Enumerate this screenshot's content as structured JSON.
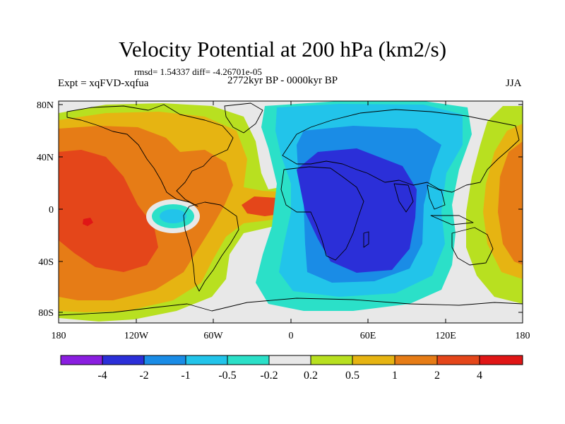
{
  "header": {
    "title": "Velocity Potential at 200 hPa (km2/s)",
    "stats": "rmsd= 1.54337 diff= -4.26701e-05",
    "experiment": "Expt = xqFVD-xqfua",
    "period": "2772kyr BP - 0000kyr BP",
    "season": "JJA"
  },
  "axes": {
    "lat_labels": [
      "80N",
      "40N",
      "0",
      "40S",
      "80S"
    ],
    "lon_labels": [
      "180",
      "120W",
      "60W",
      "0",
      "60E",
      "120E",
      "180"
    ]
  },
  "colorbar": {
    "labels": [
      "-4",
      "-2",
      "-1",
      "-0.5",
      "-0.2",
      "0.2",
      "0.5",
      "1",
      "2",
      "4"
    ],
    "colors": [
      "#8a1ee0",
      "#2b2fd8",
      "#1a8ce6",
      "#22c4ea",
      "#2be0c8",
      "#e8e8e8",
      "#b8e020",
      "#e6b412",
      "#e67c16",
      "#e4461a",
      "#e01616"
    ]
  },
  "colors": {
    "land_outline": "#000000",
    "neutral": "#e8e8e8"
  }
}
